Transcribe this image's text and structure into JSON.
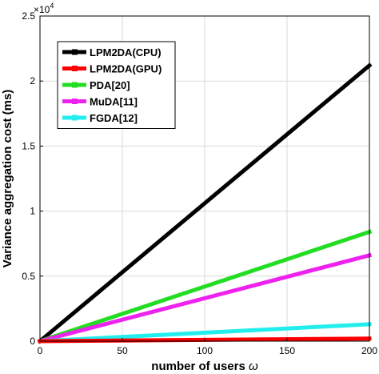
{
  "chart_data": {
    "type": "line",
    "title": "",
    "xlabel": "number of users",
    "xlabel_symbol": "ω",
    "ylabel": "Variance aggregation cost (ms)",
    "y_multiplier_base": "×10",
    "y_multiplier_exp": "4",
    "xlim": [
      0,
      200
    ],
    "ylim": [
      0,
      2.5
    ],
    "y_scale_factor": 10000,
    "x_ticks": [
      0,
      50,
      100,
      150,
      200
    ],
    "x_tick_labels": [
      "0",
      "50",
      "100",
      "150",
      "200"
    ],
    "y_ticks": [
      0,
      0.5,
      1,
      1.5,
      2,
      2.5
    ],
    "y_tick_labels": [
      "0",
      "0.5",
      "1",
      "1.5",
      "2",
      "2.5"
    ],
    "grid": true,
    "legend_position": "top-left",
    "x": [
      0,
      200
    ],
    "series": [
      {
        "name": "LPM2DA(CPU)",
        "color": "#000000",
        "values": [
          0,
          2.12
        ]
      },
      {
        "name": "LPM2DA(GPU)",
        "color": "#ff0000",
        "values": [
          0,
          0.02
        ]
      },
      {
        "name": "PDA[20]",
        "color": "#22dd22",
        "values": [
          0,
          0.84
        ]
      },
      {
        "name": "MuDA[11]",
        "color": "#ee22ee",
        "values": [
          0,
          0.66
        ]
      },
      {
        "name": "FGDA[12]",
        "color": "#22eeee",
        "values": [
          0,
          0.13
        ]
      }
    ]
  }
}
